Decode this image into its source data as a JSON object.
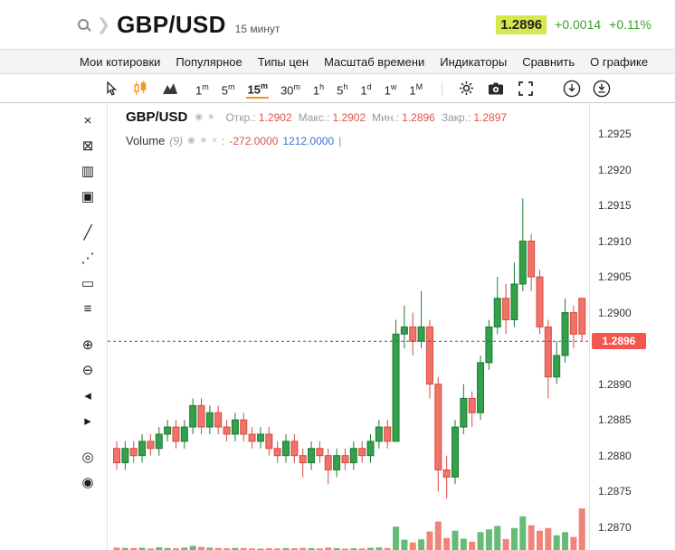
{
  "header": {
    "symbol": "GBP/USD",
    "timeframe_label": "15 минут",
    "quote": {
      "price": "1.2896",
      "change": "+0.0014",
      "change_pct": "+0.11%"
    }
  },
  "icons": {
    "eye": "◉",
    "gear": "∗",
    "close": "×",
    "chevron": "❯"
  },
  "menu": {
    "items": [
      "Мои котировки",
      "Популярное",
      "Типы цен",
      "Масштаб времени",
      "Индикаторы",
      "Сравнить",
      "О графике"
    ]
  },
  "toolbar": {
    "chart_type_icons": [
      "cursor-tool-icon",
      "candlestick-type-icon",
      "area-type-icon"
    ],
    "timeframes": [
      {
        "label": "1m",
        "num": "1",
        "unit": "m"
      },
      {
        "label": "5m",
        "num": "5",
        "unit": "m"
      },
      {
        "label": "15m",
        "num": "15",
        "unit": "m"
      },
      {
        "label": "30m",
        "num": "30",
        "unit": "m"
      },
      {
        "label": "1h",
        "num": "1",
        "unit": "h"
      },
      {
        "label": "5h",
        "num": "5",
        "unit": "h"
      },
      {
        "label": "1d",
        "num": "1",
        "unit": "d"
      },
      {
        "label": "1w",
        "num": "1",
        "unit": "w"
      },
      {
        "label": "1M",
        "num": "1",
        "unit": "M"
      }
    ],
    "selected_timeframe": "15m",
    "action_icons": [
      "settings-icon",
      "snapshot-icon",
      "fullscreen-icon",
      "download-chart-icon",
      "export-data-icon"
    ]
  },
  "side_tools": [
    {
      "name": "close",
      "glyph": "×"
    },
    {
      "name": "remove-drawings",
      "glyph": "⊠"
    },
    {
      "name": "measure",
      "glyph": "▥"
    },
    {
      "name": "clone-chart",
      "glyph": "▣"
    },
    {
      "name": "trend-line",
      "glyph": "╱",
      "gap": true
    },
    {
      "name": "ray-line",
      "glyph": "⋰"
    },
    {
      "name": "rectangle-tool",
      "glyph": "▭"
    },
    {
      "name": "horizontal-line",
      "glyph": "≡"
    },
    {
      "name": "zoom-in",
      "glyph": "⊕",
      "gap": true
    },
    {
      "name": "zoom-out",
      "glyph": "⊖"
    },
    {
      "name": "scroll-left",
      "glyph": "◂"
    },
    {
      "name": "scroll-right",
      "glyph": "▸"
    },
    {
      "name": "zoom-area",
      "glyph": "◎",
      "gap": true
    },
    {
      "name": "reset-zoom",
      "glyph": "◉"
    }
  ],
  "legend": {
    "symbol": "GBP/USD",
    "ohlc": [
      {
        "label": "Откр.:",
        "value": "1.2902"
      },
      {
        "label": "Макс.:",
        "value": "1.2902"
      },
      {
        "label": "Мин.:",
        "value": "1.2896"
      },
      {
        "label": "Закр.:",
        "value": "1.2897"
      }
    ],
    "volume": {
      "name": "Volume",
      "param": "(9)",
      "prefix": ":",
      "value_negative": "-272.0000",
      "value_positive": "1212.0000",
      "tail": "|"
    }
  },
  "price_axis": {
    "labels": [
      "1.2925",
      "1.2920",
      "1.2915",
      "1.2910",
      "1.2905",
      "1.2900",
      "1.2890",
      "1.2885",
      "1.2880",
      "1.2875",
      "1.2870"
    ],
    "current": "1.2896"
  },
  "chart_data": {
    "type": "candlestick",
    "symbol": "GBP/USD",
    "interval": "15 минут",
    "ylim": [
      1.28668,
      1.29293
    ],
    "grid": false,
    "current_price": 1.2896,
    "volume_max": 1212,
    "candles_format": [
      "open",
      "high",
      "low",
      "close",
      "volume"
    ],
    "candles": [
      [
        1.2881,
        1.2882,
        1.2878,
        1.2879,
        70
      ],
      [
        1.2879,
        1.2882,
        1.2878,
        1.2881,
        60
      ],
      [
        1.2881,
        1.2882,
        1.2879,
        1.288,
        55
      ],
      [
        1.288,
        1.2883,
        1.2879,
        1.2882,
        65
      ],
      [
        1.2882,
        1.2883,
        1.288,
        1.2881,
        45
      ],
      [
        1.2881,
        1.2884,
        1.288,
        1.2883,
        80
      ],
      [
        1.2883,
        1.2885,
        1.2882,
        1.2884,
        60
      ],
      [
        1.2884,
        1.2885,
        1.2881,
        1.2882,
        50
      ],
      [
        1.2882,
        1.2885,
        1.2881,
        1.2884,
        70
      ],
      [
        1.2884,
        1.2888,
        1.2883,
        1.2887,
        120
      ],
      [
        1.2887,
        1.2888,
        1.2883,
        1.2884,
        90
      ],
      [
        1.2884,
        1.2887,
        1.2883,
        1.2886,
        70
      ],
      [
        1.2886,
        1.2887,
        1.2883,
        1.2884,
        60
      ],
      [
        1.2884,
        1.2885,
        1.2882,
        1.2883,
        50
      ],
      [
        1.2883,
        1.2886,
        1.2882,
        1.2885,
        60
      ],
      [
        1.2885,
        1.2886,
        1.2882,
        1.2883,
        55
      ],
      [
        1.2883,
        1.2884,
        1.2881,
        1.2882,
        45
      ],
      [
        1.2882,
        1.2884,
        1.2881,
        1.2883,
        40
      ],
      [
        1.2883,
        1.2884,
        1.288,
        1.2881,
        50
      ],
      [
        1.2881,
        1.2882,
        1.2879,
        1.288,
        45
      ],
      [
        1.288,
        1.2883,
        1.2879,
        1.2882,
        55
      ],
      [
        1.2882,
        1.2883,
        1.2879,
        1.288,
        50
      ],
      [
        1.288,
        1.2881,
        1.2877,
        1.2879,
        60
      ],
      [
        1.2879,
        1.2882,
        1.2878,
        1.2881,
        55
      ],
      [
        1.2881,
        1.2882,
        1.2879,
        1.288,
        45
      ],
      [
        1.288,
        1.2881,
        1.2876,
        1.2878,
        70
      ],
      [
        1.2878,
        1.2881,
        1.2877,
        1.288,
        55
      ],
      [
        1.288,
        1.2881,
        1.2878,
        1.2879,
        40
      ],
      [
        1.2879,
        1.2882,
        1.2878,
        1.2881,
        50
      ],
      [
        1.2881,
        1.2882,
        1.2879,
        1.288,
        45
      ],
      [
        1.288,
        1.2883,
        1.2879,
        1.2882,
        65
      ],
      [
        1.2882,
        1.2885,
        1.2881,
        1.2884,
        75
      ],
      [
        1.2884,
        1.2885,
        1.2881,
        1.2882,
        55
      ],
      [
        1.2882,
        1.2899,
        1.2882,
        1.2897,
        680
      ],
      [
        1.2897,
        1.2901,
        1.2895,
        1.2898,
        300
      ],
      [
        1.2898,
        1.29,
        1.2894,
        1.2896,
        220
      ],
      [
        1.2896,
        1.2903,
        1.2895,
        1.2898,
        310
      ],
      [
        1.2898,
        1.2899,
        1.2888,
        1.289,
        540
      ],
      [
        1.289,
        1.2891,
        1.2875,
        1.2878,
        830
      ],
      [
        1.2878,
        1.288,
        1.2874,
        1.2877,
        350
      ],
      [
        1.2877,
        1.2885,
        1.2876,
        1.2884,
        560
      ],
      [
        1.2884,
        1.289,
        1.2883,
        1.2888,
        330
      ],
      [
        1.2888,
        1.2889,
        1.2884,
        1.2886,
        240
      ],
      [
        1.2886,
        1.2894,
        1.2885,
        1.2893,
        520
      ],
      [
        1.2893,
        1.2899,
        1.2892,
        1.2898,
        600
      ],
      [
        1.2898,
        1.2905,
        1.2897,
        1.2902,
        700
      ],
      [
        1.2902,
        1.2904,
        1.2897,
        1.2899,
        320
      ],
      [
        1.2899,
        1.2907,
        1.2898,
        1.2904,
        640
      ],
      [
        1.2904,
        1.2916,
        1.2903,
        1.291,
        980
      ],
      [
        1.291,
        1.2911,
        1.2903,
        1.2905,
        720
      ],
      [
        1.2905,
        1.2906,
        1.2897,
        1.2898,
        560
      ],
      [
        1.2898,
        1.2899,
        1.2888,
        1.2891,
        640
      ],
      [
        1.2891,
        1.2896,
        1.289,
        1.2894,
        430
      ],
      [
        1.2894,
        1.2902,
        1.2893,
        1.29,
        520
      ],
      [
        1.29,
        1.2901,
        1.2895,
        1.2897,
        380
      ],
      [
        1.2902,
        1.2902,
        1.2896,
        1.2897,
        1212
      ]
    ]
  },
  "colors": {
    "up_fill": "#33a04a",
    "up_stroke": "#1e7a33",
    "down_fill": "#f0736a",
    "down_stroke": "#d84a40",
    "vol_up": "#55b468",
    "vol_down": "#ef776c",
    "accent": "#f7941e",
    "badge_bg": "#f4564f",
    "quote_bg": "#d6e84b",
    "positive": "#3fa02f",
    "value_red": "#e0544a",
    "value_blue": "#3f6fd8"
  }
}
